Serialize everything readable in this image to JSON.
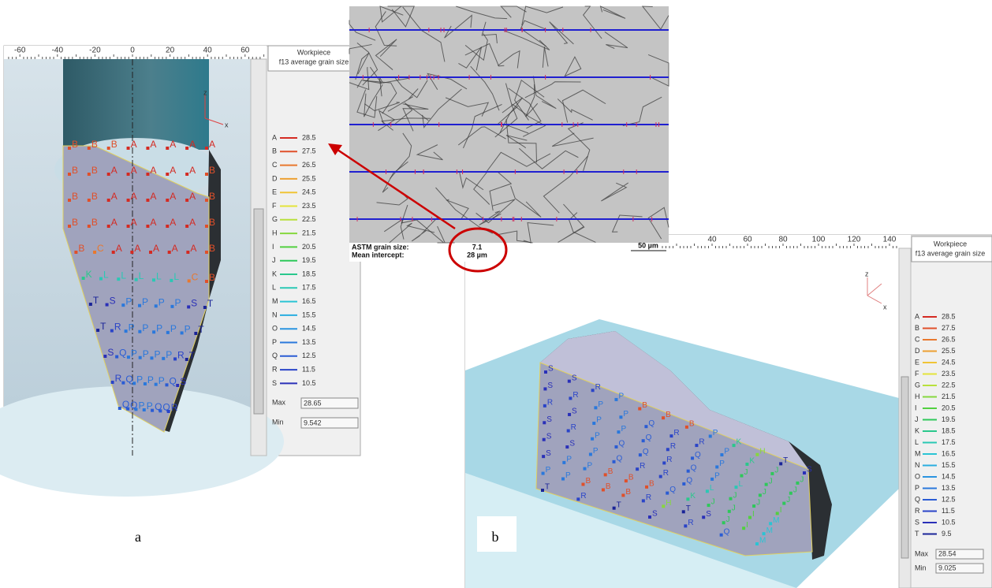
{
  "panel_a": {
    "label": "a",
    "ruler_ticks": [
      -60,
      -40,
      -20,
      0,
      20,
      40,
      60
    ],
    "legend_title": "Workpiece",
    "legend_subtitle": "f13 average grain size",
    "legend": [
      {
        "key": "A",
        "value": 28.5,
        "color": "#d42a22"
      },
      {
        "key": "B",
        "value": 27.5,
        "color": "#e0502a"
      },
      {
        "key": "C",
        "value": 26.5,
        "color": "#e8782e"
      },
      {
        "key": "D",
        "value": 25.5,
        "color": "#eda032"
      },
      {
        "key": "E",
        "value": 24.5,
        "color": "#f0c436"
      },
      {
        "key": "F",
        "value": 23.5,
        "color": "#e4e43a"
      },
      {
        "key": "G",
        "value": 22.5,
        "color": "#b8e03c"
      },
      {
        "key": "H",
        "value": 21.5,
        "color": "#86d83e"
      },
      {
        "key": "I",
        "value": 20.5,
        "color": "#52d040"
      },
      {
        "key": "J",
        "value": 19.5,
        "color": "#2ec85a"
      },
      {
        "key": "K",
        "value": 18.5,
        "color": "#2ac88c"
      },
      {
        "key": "L",
        "value": 17.5,
        "color": "#2ac8b4"
      },
      {
        "key": "M",
        "value": 16.5,
        "color": "#2ac4d4"
      },
      {
        "key": "N",
        "value": 15.5,
        "color": "#2aaee0"
      },
      {
        "key": "O",
        "value": 14.5,
        "color": "#2a94e0"
      },
      {
        "key": "P",
        "value": 13.5,
        "color": "#2a78dc"
      },
      {
        "key": "Q",
        "value": 12.5,
        "color": "#2a5cd4"
      },
      {
        "key": "R",
        "value": 11.5,
        "color": "#2a44c8"
      },
      {
        "key": "S",
        "value": 10.5,
        "color": "#2a30b8"
      }
    ],
    "max_label": "Max",
    "max": 28.65,
    "min_label": "Min",
    "min": 9.542,
    "axis_z": "z",
    "axis_x": "x",
    "point_rows": [
      "BBBAAAAA",
      "BBAAAAAB",
      "BBAAAAAB",
      "BBAAAAAB",
      "BCAAAAAB",
      "KLLLLLCB",
      "TSPPPPST",
      "TRPPPPPT",
      "SQPPPPRT",
      "RQPPPQS",
      "QQPPQQR"
    ]
  },
  "micrograph": {
    "grain_size_label": "ASTM grain size:",
    "grain_size": 7.1,
    "intercept_label": "Mean intercept:",
    "intercept": "28 µm",
    "scale": "50 µm"
  },
  "panel_b": {
    "label": "b",
    "ruler_ticks": [
      40,
      60,
      80,
      100,
      120,
      140
    ],
    "legend_title": "Workpiece",
    "legend_subtitle": "f13 average grain size",
    "legend": [
      {
        "key": "A",
        "value": 28.5,
        "color": "#d42a22"
      },
      {
        "key": "B",
        "value": 27.5,
        "color": "#e0502a"
      },
      {
        "key": "C",
        "value": 26.5,
        "color": "#e8782e"
      },
      {
        "key": "D",
        "value": 25.5,
        "color": "#eda032"
      },
      {
        "key": "E",
        "value": 24.5,
        "color": "#f0c436"
      },
      {
        "key": "F",
        "value": 23.5,
        "color": "#e4e43a"
      },
      {
        "key": "G",
        "value": 22.5,
        "color": "#b8e03c"
      },
      {
        "key": "H",
        "value": 21.5,
        "color": "#86d83e"
      },
      {
        "key": "I",
        "value": 20.5,
        "color": "#52d040"
      },
      {
        "key": "J",
        "value": 19.5,
        "color": "#2ec85a"
      },
      {
        "key": "K",
        "value": 18.5,
        "color": "#2ac88c"
      },
      {
        "key": "L",
        "value": 17.5,
        "color": "#2ac8b4"
      },
      {
        "key": "M",
        "value": 16.5,
        "color": "#2ac4d4"
      },
      {
        "key": "N",
        "value": 15.5,
        "color": "#2aaee0"
      },
      {
        "key": "O",
        "value": 14.5,
        "color": "#2a94e0"
      },
      {
        "key": "P",
        "value": 13.5,
        "color": "#2a78dc"
      },
      {
        "key": "Q",
        "value": 12.5,
        "color": "#2a5cd4"
      },
      {
        "key": "R",
        "value": 11.5,
        "color": "#2a44c8"
      },
      {
        "key": "S",
        "value": 10.5,
        "color": "#2a30b8"
      },
      {
        "key": "T",
        "value": 9.5,
        "color": "#1a2498"
      }
    ],
    "max_label": "Max",
    "max": 28.54,
    "min_label": "Min",
    "min": 9.025,
    "axis_z": "z",
    "axis_x": "x",
    "point_rows": [
      "SSRPBBBPKHTS",
      "SRPPQRRPKJJ",
      "RSPPQRQPJJJ",
      "SRPQQRQPLJJ",
      "SSPQRRQLJJI",
      "SPPBBBQKJJIM",
      "PPBBBRHTSJIM",
      "TRTSRQM"
    ]
  }
}
